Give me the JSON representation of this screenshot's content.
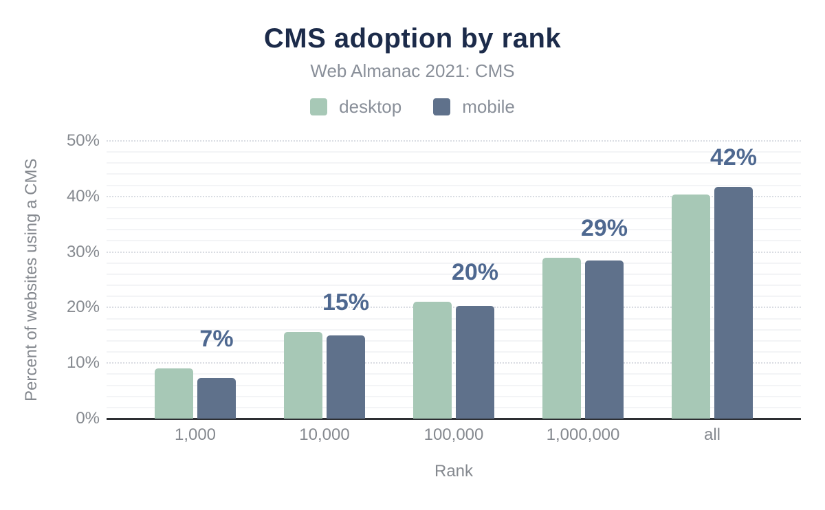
{
  "chart_data": {
    "type": "bar",
    "title": "CMS adoption by rank",
    "subtitle": "Web Almanac 2021: CMS",
    "xlabel": "Rank",
    "ylabel": "Percent of websites using a CMS",
    "categories": [
      "1,000",
      "10,000",
      "100,000",
      "1,000,000",
      "all"
    ],
    "series": [
      {
        "name": "desktop",
        "color": "#a7c8b6",
        "values": [
          9.0,
          15.6,
          21.1,
          29.0,
          40.4
        ]
      },
      {
        "name": "mobile",
        "color": "#5f718b",
        "values": [
          7.3,
          15.0,
          20.3,
          28.5,
          41.7
        ]
      }
    ],
    "bar_labels": [
      "7%",
      "15%",
      "20%",
      "29%",
      "42%"
    ],
    "y_ticks": [
      "0%",
      "10%",
      "20%",
      "30%",
      "40%",
      "50%"
    ],
    "ylim": [
      0,
      50
    ],
    "grid": {
      "major_every_percent": 10,
      "minor_every_percent": 2,
      "grid_on": true
    },
    "legend_position": "top",
    "colors": {
      "title": "#1c2b4a",
      "subtitle": "#898f99",
      "axis_text": "#85898f",
      "data_label": "#4e6890",
      "axis_line": "#2d2f33",
      "major_grid": "#d9dce2",
      "minor_grid": "#f3f4f6",
      "background": "#ffffff"
    }
  }
}
